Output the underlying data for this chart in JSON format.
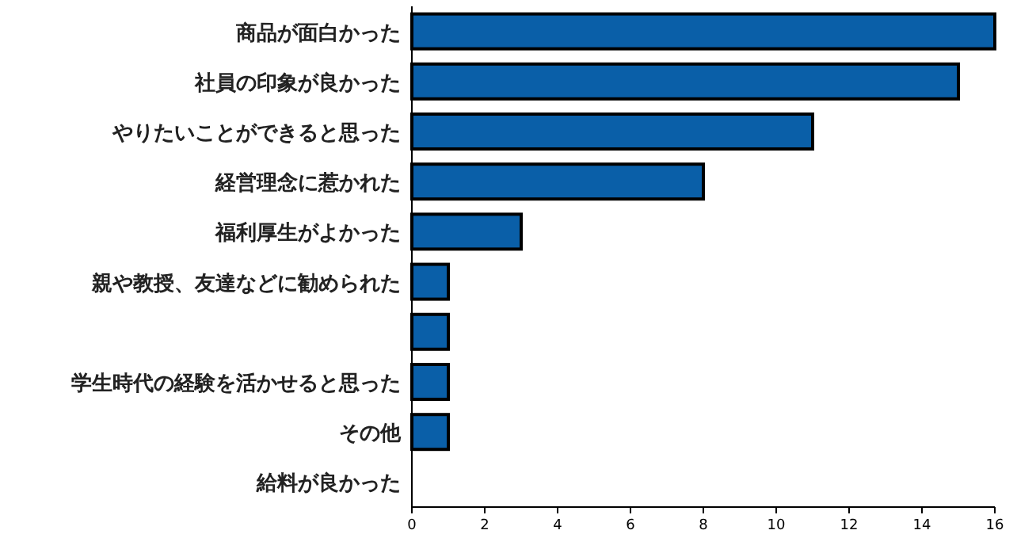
{
  "chart_data": {
    "type": "bar",
    "orientation": "horizontal",
    "categories": [
      "商品が面白かった",
      "社員の印象が良かった",
      "やりたいことができると思った",
      "経営理念に惹かれた",
      "福利厚生がよかった",
      "親や教授、友達などに勧められた",
      null,
      "学生時代の経験を活かせると思った",
      "その他",
      "給料が良かった"
    ],
    "values": [
      16,
      15,
      11,
      8,
      3,
      1,
      1,
      1,
      1,
      0
    ],
    "color": "#0a5fa8",
    "xlim": [
      0,
      16
    ],
    "xticks": [
      0,
      2,
      4,
      6,
      8,
      10,
      12,
      14,
      16
    ]
  }
}
